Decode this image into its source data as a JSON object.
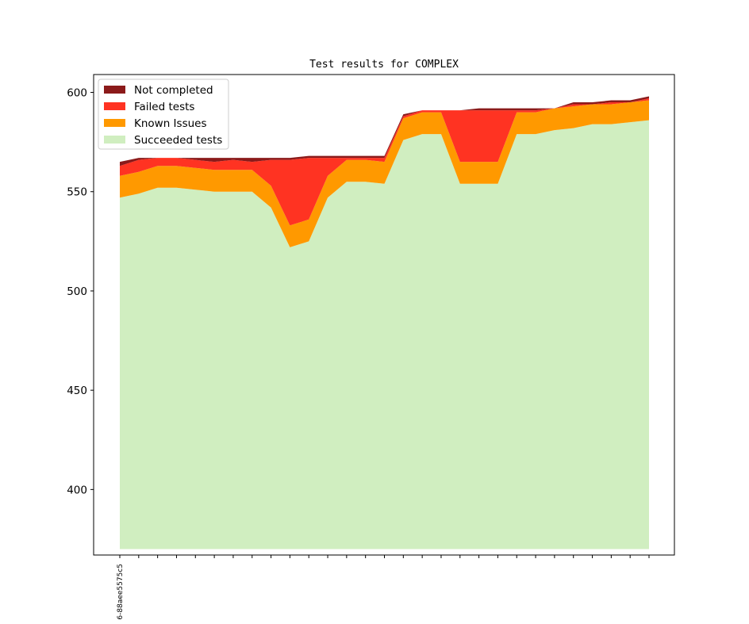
{
  "chart_data": {
    "type": "area",
    "stacked": true,
    "title": "Test results for COMPLEX",
    "xlabel": "",
    "ylabel": "",
    "ylim": [
      367,
      609
    ],
    "yticks": [
      400,
      450,
      500,
      550,
      600
    ],
    "xtick_labels": [
      "6-88aee5575c5",
      "",
      "",
      "",
      "",
      "",
      "",
      "",
      "",
      "",
      "",
      "",
      "",
      "",
      "",
      "",
      "",
      "",
      "",
      "",
      "",
      "",
      "",
      "",
      "",
      "",
      "",
      "",
      ""
    ],
    "baseline": 370,
    "legend_position": "upper-left",
    "series": [
      {
        "name": "Succeeded tests",
        "color": "#d0eec0",
        "top": [
          547,
          549,
          552,
          552,
          551,
          550,
          550,
          550,
          542,
          522,
          525,
          547,
          555,
          555,
          554,
          576,
          579,
          579,
          554,
          554,
          554,
          579,
          579,
          581,
          582,
          584,
          584,
          585,
          586
        ]
      },
      {
        "name": "Known Issues",
        "color": "#ff9900",
        "top": [
          558,
          560,
          563,
          563,
          562,
          561,
          561,
          561,
          553,
          533,
          536,
          558,
          566,
          566,
          565,
          587,
          590,
          590,
          565,
          565,
          565,
          590,
          590,
          592,
          593,
          594,
          594,
          595,
          596
        ]
      },
      {
        "name": "Failed tests",
        "color": "#ff3322",
        "top": [
          563,
          566,
          567,
          567,
          566,
          565,
          566,
          565,
          566,
          566,
          567,
          567,
          567,
          567,
          567,
          588,
          591,
          591,
          591,
          591,
          591,
          591,
          591,
          592,
          594,
          594,
          595,
          595,
          597
        ]
      },
      {
        "name": "Not completed",
        "color": "#8b1a1a",
        "top": [
          565,
          567,
          567,
          567,
          567,
          567,
          567,
          567,
          567,
          567,
          568,
          568,
          568,
          568,
          568,
          589,
          591,
          591,
          591,
          592,
          592,
          592,
          592,
          592,
          595,
          595,
          596,
          596,
          598
        ]
      }
    ]
  }
}
